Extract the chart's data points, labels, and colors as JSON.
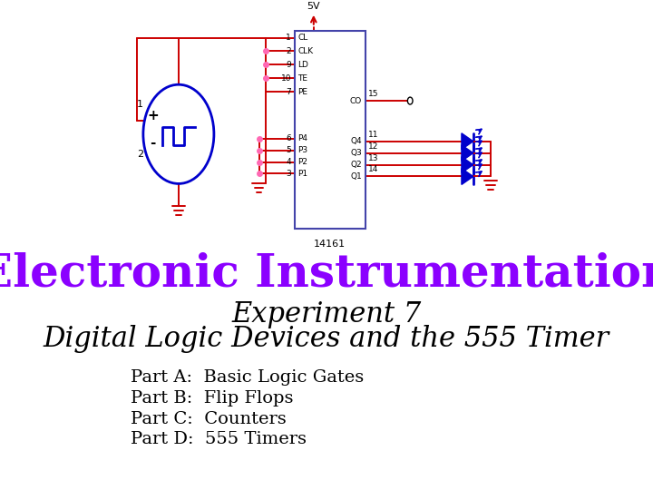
{
  "title_main": "Electronic Instrumentation",
  "title_main_color": "#8B00FF",
  "title_main_size": 36,
  "subtitle_line1": "Experiment 7",
  "subtitle_line2": "Digital Logic Devices and the 555 Timer",
  "subtitle_size": 22,
  "parts": [
    "Part A:  Basic Logic Gates",
    "Part B:  Flip Flops",
    "Part C:  Counters",
    "Part D:  555 Timers"
  ],
  "parts_size": 14,
  "bg_color": "#ffffff",
  "circuit_color_red": "#CC0000",
  "circuit_color_blue": "#0000CC",
  "circuit_color_pink": "#FF69B4",
  "chip_color": "#4444AA"
}
